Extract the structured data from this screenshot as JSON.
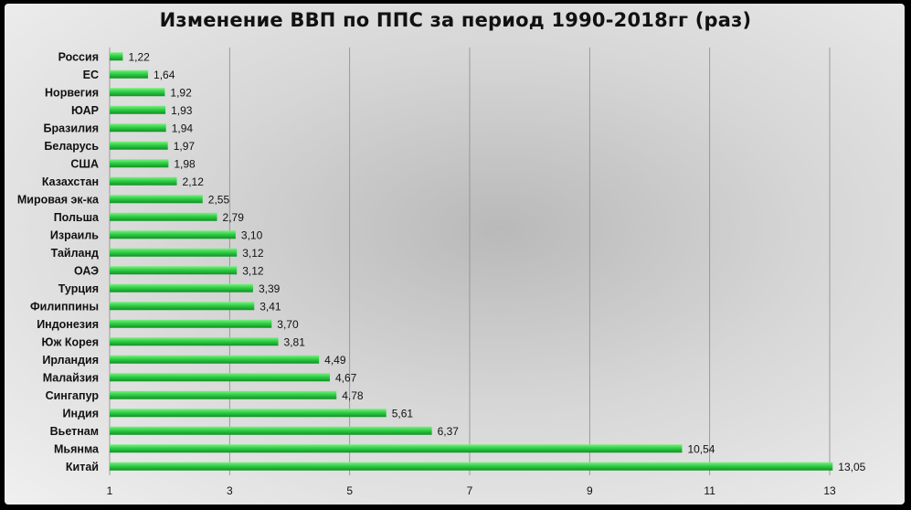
{
  "chart_data": {
    "type": "bar",
    "orientation": "horizontal",
    "title": "Изменение ВВП по ППС за период 1990-2018гг (раз)",
    "categories": [
      "Россия",
      "ЕС",
      "Норвегия",
      "ЮАР",
      "Бразилия",
      "Беларусь",
      "США",
      "Казахстан",
      "Мировая эк-ка",
      "Польша",
      "Израиль",
      "Тайланд",
      "ОАЭ",
      "Турция",
      "Филиппины",
      "Индонезия",
      "Юж Корея",
      "Ирландия",
      "Малайзия",
      "Сингапур",
      "Индия",
      "Вьетнам",
      "Мьянма",
      "Китай"
    ],
    "values": [
      1.22,
      1.64,
      1.92,
      1.93,
      1.94,
      1.97,
      1.98,
      2.12,
      2.55,
      2.79,
      3.1,
      3.12,
      3.12,
      3.39,
      3.41,
      3.7,
      3.81,
      4.49,
      4.67,
      4.78,
      5.61,
      6.37,
      10.54,
      13.05
    ],
    "value_labels": [
      "1,22",
      "1,64",
      "1,92",
      "1,93",
      "1,94",
      "1,97",
      "1,98",
      "2,12",
      "2,55",
      "2,79",
      "3,10",
      "3,12",
      "3,12",
      "3,39",
      "3,41",
      "3,70",
      "3,81",
      "4,49",
      "4,67",
      "4,78",
      "5,61",
      "6,37",
      "10,54",
      "13,05"
    ],
    "xticks": [
      1,
      3,
      5,
      7,
      9,
      11,
      13
    ],
    "xlim": [
      1,
      13
    ],
    "grid": "vertical",
    "bar_color": "#22c43c"
  }
}
